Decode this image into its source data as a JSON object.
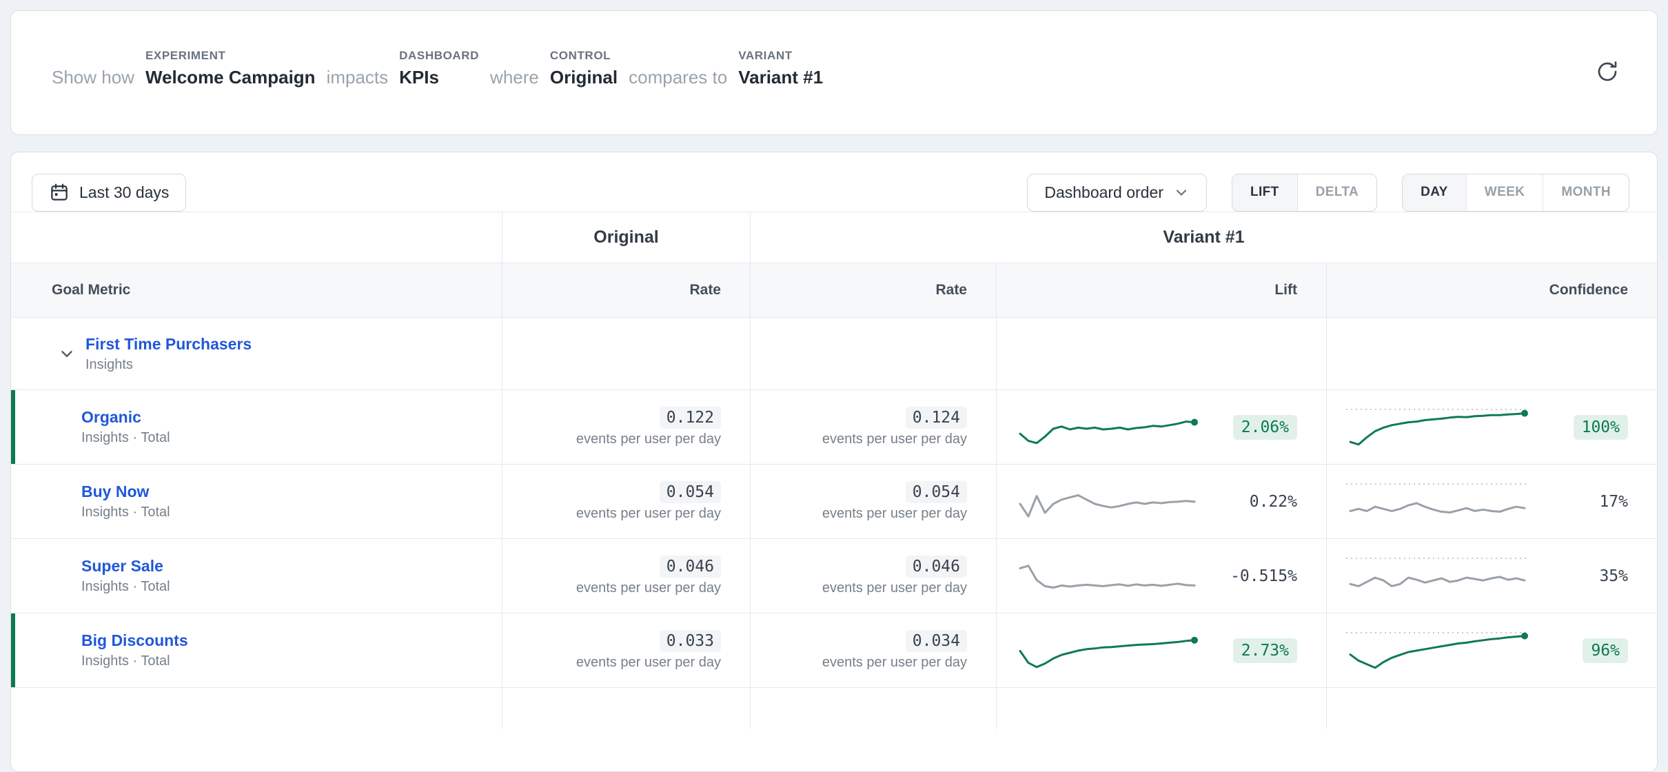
{
  "header": {
    "sentence": [
      {
        "label": "",
        "text": "Show how",
        "muted": true
      },
      {
        "label": "EXPERIMENT",
        "text": "Welcome Campaign"
      },
      {
        "label": "",
        "text": "impacts",
        "muted": true
      },
      {
        "label": "DASHBOARD",
        "text": "KPIs"
      },
      {
        "label": "",
        "text": "where",
        "muted": true
      },
      {
        "label": "CONTROL",
        "text": "Original"
      },
      {
        "label": "",
        "text": "compares to",
        "muted": true
      },
      {
        "label": "VARIANT",
        "text": "Variant #1"
      }
    ],
    "refresh_icon": "refresh-icon"
  },
  "toolbar": {
    "date_range_label": "Last 30 days",
    "order_dropdown_label": "Dashboard order",
    "mode_segments": [
      "LIFT",
      "DELTA"
    ],
    "mode_active": "LIFT",
    "granularity_segments": [
      "DAY",
      "WEEK",
      "MONTH"
    ],
    "granularity_active": "DAY"
  },
  "table": {
    "group_headers": {
      "control": "Original",
      "variant": "Variant #1"
    },
    "columns": {
      "metric": "Goal Metric",
      "control_rate": "Rate",
      "variant_rate": "Rate",
      "lift": "Lift",
      "confidence": "Confidence"
    },
    "unit": "events per user per day",
    "parent_row": {
      "name": "First Time Purchasers",
      "subtitle": "Insights"
    },
    "rows": [
      {
        "name": "Organic",
        "subtitle": "Insights · Total",
        "control_rate": "0.122",
        "variant_rate": "0.124",
        "lift": "2.06%",
        "confidence": "100%",
        "significant": true,
        "color": "green",
        "lift_spark": [
          0.38,
          0.18,
          0.12,
          0.3,
          0.52,
          0.58,
          0.5,
          0.55,
          0.52,
          0.55,
          0.5,
          0.52,
          0.55,
          0.5,
          0.54,
          0.56,
          0.6,
          0.58,
          0.62,
          0.66,
          0.72,
          0.7
        ],
        "confidence_spark": [
          0.15,
          0.08,
          0.28,
          0.45,
          0.55,
          0.62,
          0.66,
          0.7,
          0.72,
          0.76,
          0.78,
          0.8,
          0.83,
          0.85,
          0.84,
          0.87,
          0.88,
          0.9,
          0.9,
          0.92,
          0.93,
          0.95
        ]
      },
      {
        "name": "Buy Now",
        "subtitle": "Insights · Total",
        "control_rate": "0.054",
        "variant_rate": "0.054",
        "lift": "0.22%",
        "confidence": "17%",
        "significant": false,
        "color": "gray",
        "lift_spark": [
          0.5,
          0.15,
          0.72,
          0.25,
          0.5,
          0.62,
          0.68,
          0.74,
          0.62,
          0.5,
          0.44,
          0.4,
          0.44,
          0.5,
          0.54,
          0.5,
          0.54,
          0.52,
          0.55,
          0.56,
          0.58,
          0.56
        ],
        "confidence_spark": [
          0.3,
          0.36,
          0.3,
          0.42,
          0.36,
          0.3,
          0.36,
          0.46,
          0.52,
          0.42,
          0.34,
          0.28,
          0.26,
          0.32,
          0.38,
          0.3,
          0.34,
          0.3,
          0.28,
          0.36,
          0.42,
          0.38
        ]
      },
      {
        "name": "Super Sale",
        "subtitle": "Insights · Total",
        "control_rate": "0.046",
        "variant_rate": "0.046",
        "lift": "-0.515%",
        "confidence": "35%",
        "significant": false,
        "color": "gray",
        "lift_spark": [
          0.78,
          0.85,
          0.45,
          0.28,
          0.24,
          0.3,
          0.27,
          0.3,
          0.32,
          0.3,
          0.28,
          0.31,
          0.33,
          0.29,
          0.33,
          0.3,
          0.32,
          0.29,
          0.32,
          0.35,
          0.31,
          0.3
        ],
        "confidence_spark": [
          0.34,
          0.28,
          0.4,
          0.52,
          0.44,
          0.28,
          0.34,
          0.52,
          0.46,
          0.38,
          0.44,
          0.5,
          0.4,
          0.44,
          0.52,
          0.48,
          0.44,
          0.5,
          0.54,
          0.46,
          0.5,
          0.44
        ]
      },
      {
        "name": "Big Discounts",
        "subtitle": "Insights · Total",
        "control_rate": "0.033",
        "variant_rate": "0.034",
        "lift": "2.73%",
        "confidence": "96%",
        "significant": true,
        "color": "green",
        "lift_spark": [
          0.55,
          0.22,
          0.1,
          0.2,
          0.34,
          0.44,
          0.5,
          0.56,
          0.6,
          0.62,
          0.65,
          0.66,
          0.68,
          0.7,
          0.72,
          0.73,
          0.74,
          0.76,
          0.78,
          0.8,
          0.83,
          0.85
        ],
        "confidence_spark": [
          0.45,
          0.28,
          0.18,
          0.08,
          0.24,
          0.36,
          0.44,
          0.52,
          0.56,
          0.6,
          0.64,
          0.68,
          0.72,
          0.76,
          0.78,
          0.82,
          0.85,
          0.88,
          0.9,
          0.93,
          0.95,
          0.97
        ]
      }
    ]
  },
  "colors": {
    "accent_green": "#0d7a4f",
    "spark_green": "#0e7b50",
    "spark_gray": "#99a1a9",
    "link_blue": "#2158d8",
    "sig_bg": "#e1f1e9"
  }
}
